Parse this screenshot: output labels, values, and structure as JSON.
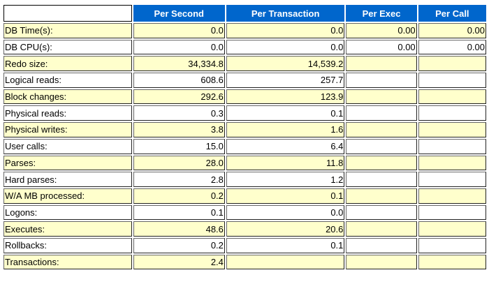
{
  "table": {
    "header": [
      "Per Second",
      "Per Transaction",
      "Per Exec",
      "Per Call"
    ],
    "rows": [
      [
        "DB Time(s):",
        "0.0",
        "0.0",
        "0.00",
        "0.00"
      ],
      [
        "DB CPU(s):",
        "0.0",
        "0.0",
        "0.00",
        "0.00"
      ],
      [
        "Redo size:",
        "34,334.8",
        "14,539.2",
        null,
        null
      ],
      [
        "Logical reads:",
        "608.6",
        "257.7",
        null,
        null
      ],
      [
        "Block changes:",
        "292.6",
        "123.9",
        null,
        null
      ],
      [
        "Physical reads:",
        "0.3",
        "0.1",
        null,
        null
      ],
      [
        "Physical writes:",
        "3.8",
        "1.6",
        null,
        null
      ],
      [
        "User calls:",
        "15.0",
        "6.4",
        null,
        null
      ],
      [
        "Parses:",
        "28.0",
        "11.8",
        null,
        null
      ],
      [
        "Hard parses:",
        "2.8",
        "1.2",
        null,
        null
      ],
      [
        "W/A MB processed:",
        "0.2",
        "0.1",
        null,
        null
      ],
      [
        "Logons:",
        "0.1",
        "0.0",
        null,
        null
      ],
      [
        "Executes:",
        "48.6",
        "20.6",
        null,
        null
      ],
      [
        "Rollbacks:",
        "0.2",
        "0.1",
        null,
        null
      ],
      [
        "Transactions:",
        "2.4",
        null,
        null,
        null
      ]
    ]
  }
}
